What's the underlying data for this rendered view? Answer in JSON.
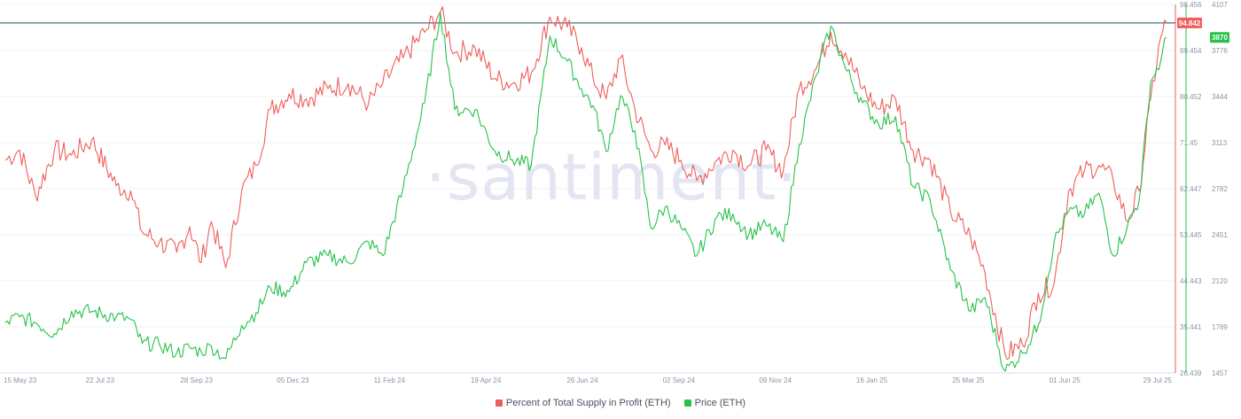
{
  "chart_data": {
    "type": "line",
    "watermark": "·santiment·",
    "x_tick_labels": [
      "15 May 23",
      "22 Jul 23",
      "28 Sep 23",
      "05 Dec 23",
      "11 Feb 24",
      "19 Apr 24",
      "26 Jun 24",
      "02 Sep 24",
      "09 Nov 24",
      "16 Jan 25",
      "25 Mar 25",
      "01 Jun 25",
      "29 Jul 25"
    ],
    "left_axis": {
      "series": "Percent of Total Supply in Profit (ETH)",
      "ylim": [
        26.439,
        98.456
      ],
      "ticks": [
        "98.456",
        "89.454",
        "80.452",
        "71.45",
        "62.447",
        "53.445",
        "44.443",
        "35.441",
        "26.439"
      ]
    },
    "right_axis": {
      "series": "Price (ETH)",
      "ylim": [
        1457,
        4107
      ],
      "ticks": [
        "4107",
        "3776",
        "3444",
        "3113",
        "2782",
        "2451",
        "2120",
        "1789",
        "1457"
      ]
    },
    "reference_line": {
      "value": 94.842,
      "axis": "left"
    },
    "current_values": {
      "percent_label": "94.842",
      "price_label": "3870"
    },
    "series": [
      {
        "name": "Percent of Total Supply in Profit (ETH)",
        "color": "#ee5f5b",
        "axis": "left",
        "points": [
          [
            "2023-05-15",
            68
          ],
          [
            "2023-05-25",
            70
          ],
          [
            "2023-06-05",
            61
          ],
          [
            "2023-06-18",
            70
          ],
          [
            "2023-06-30",
            69
          ],
          [
            "2023-07-14",
            72
          ],
          [
            "2023-07-31",
            63
          ],
          [
            "2023-08-10",
            62
          ],
          [
            "2023-08-18",
            54
          ],
          [
            "2023-08-30",
            52
          ],
          [
            "2023-09-11",
            50
          ],
          [
            "2023-09-20",
            55
          ],
          [
            "2023-09-28",
            48
          ],
          [
            "2023-10-05",
            56
          ],
          [
            "2023-10-15",
            47
          ],
          [
            "2023-10-26",
            62
          ],
          [
            "2023-11-05",
            67
          ],
          [
            "2023-11-15",
            78
          ],
          [
            "2023-11-28",
            81
          ],
          [
            "2023-12-10",
            80
          ],
          [
            "2023-12-25",
            82
          ],
          [
            "2024-01-08",
            83
          ],
          [
            "2024-01-22",
            79
          ],
          [
            "2024-02-01",
            83
          ],
          [
            "2024-02-15",
            88
          ],
          [
            "2024-03-01",
            93
          ],
          [
            "2024-03-12",
            97
          ],
          [
            "2024-03-22",
            89
          ],
          [
            "2024-04-05",
            90
          ],
          [
            "2024-04-19",
            84
          ],
          [
            "2024-05-01",
            83
          ],
          [
            "2024-05-14",
            85
          ],
          [
            "2024-05-27",
            96
          ],
          [
            "2024-06-08",
            94
          ],
          [
            "2024-06-18",
            90
          ],
          [
            "2024-06-26",
            84
          ],
          [
            "2024-07-05",
            80
          ],
          [
            "2024-07-15",
            88
          ],
          [
            "2024-07-25",
            78
          ],
          [
            "2024-08-05",
            70
          ],
          [
            "2024-08-15",
            71
          ],
          [
            "2024-08-26",
            68
          ],
          [
            "2024-09-06",
            64
          ],
          [
            "2024-09-20",
            68
          ],
          [
            "2024-10-01",
            70
          ],
          [
            "2024-10-12",
            67
          ],
          [
            "2024-10-24",
            70
          ],
          [
            "2024-11-05",
            66
          ],
          [
            "2024-11-16",
            82
          ],
          [
            "2024-11-28",
            86
          ],
          [
            "2024-12-08",
            93
          ],
          [
            "2024-12-18",
            89
          ],
          [
            "2024-12-30",
            82
          ],
          [
            "2025-01-10",
            78
          ],
          [
            "2025-01-22",
            80
          ],
          [
            "2025-02-03",
            70
          ],
          [
            "2025-02-15",
            68
          ],
          [
            "2025-03-01",
            58
          ],
          [
            "2025-03-15",
            53
          ],
          [
            "2025-03-25",
            46
          ],
          [
            "2025-04-08",
            30
          ],
          [
            "2025-04-20",
            32
          ],
          [
            "2025-05-01",
            42
          ],
          [
            "2025-05-12",
            44
          ],
          [
            "2025-05-22",
            62
          ],
          [
            "2025-06-02",
            66
          ],
          [
            "2025-06-12",
            67
          ],
          [
            "2025-06-22",
            64
          ],
          [
            "2025-07-02",
            56
          ],
          [
            "2025-07-10",
            62
          ],
          [
            "2025-07-18",
            80
          ],
          [
            "2025-07-25",
            92
          ],
          [
            "2025-07-29",
            95
          ]
        ]
      },
      {
        "name": "Price (ETH)",
        "color": "#26c24a",
        "axis": "right",
        "points": [
          [
            "2023-05-15",
            1818
          ],
          [
            "2023-05-25",
            1860
          ],
          [
            "2023-06-05",
            1820
          ],
          [
            "2023-06-18",
            1740
          ],
          [
            "2023-06-30",
            1900
          ],
          [
            "2023-07-14",
            1900
          ],
          [
            "2023-07-31",
            1860
          ],
          [
            "2023-08-10",
            1840
          ],
          [
            "2023-08-18",
            1670
          ],
          [
            "2023-08-30",
            1660
          ],
          [
            "2023-09-11",
            1600
          ],
          [
            "2023-09-20",
            1640
          ],
          [
            "2023-09-28",
            1610
          ],
          [
            "2023-10-05",
            1650
          ],
          [
            "2023-10-15",
            1560
          ],
          [
            "2023-10-26",
            1800
          ],
          [
            "2023-11-05",
            1890
          ],
          [
            "2023-11-15",
            2070
          ],
          [
            "2023-11-28",
            2040
          ],
          [
            "2023-12-10",
            2250
          ],
          [
            "2023-12-25",
            2300
          ],
          [
            "2024-01-08",
            2250
          ],
          [
            "2024-01-22",
            2400
          ],
          [
            "2024-02-01",
            2300
          ],
          [
            "2024-02-15",
            2780
          ],
          [
            "2024-03-01",
            3400
          ],
          [
            "2024-03-12",
            4050
          ],
          [
            "2024-03-22",
            3350
          ],
          [
            "2024-04-05",
            3350
          ],
          [
            "2024-04-19",
            3050
          ],
          [
            "2024-05-01",
            2990
          ],
          [
            "2024-05-14",
            2950
          ],
          [
            "2024-05-27",
            3880
          ],
          [
            "2024-06-08",
            3700
          ],
          [
            "2024-06-18",
            3500
          ],
          [
            "2024-06-26",
            3380
          ],
          [
            "2024-07-05",
            3050
          ],
          [
            "2024-07-15",
            3450
          ],
          [
            "2024-07-25",
            3200
          ],
          [
            "2024-08-05",
            2500
          ],
          [
            "2024-08-15",
            2650
          ],
          [
            "2024-08-26",
            2500
          ],
          [
            "2024-09-06",
            2300
          ],
          [
            "2024-09-20",
            2580
          ],
          [
            "2024-10-01",
            2600
          ],
          [
            "2024-10-12",
            2450
          ],
          [
            "2024-10-24",
            2520
          ],
          [
            "2024-11-05",
            2400
          ],
          [
            "2024-11-16",
            3100
          ],
          [
            "2024-11-28",
            3600
          ],
          [
            "2024-12-08",
            3950
          ],
          [
            "2024-12-18",
            3650
          ],
          [
            "2024-12-30",
            3400
          ],
          [
            "2025-01-10",
            3250
          ],
          [
            "2025-01-22",
            3300
          ],
          [
            "2025-02-03",
            2800
          ],
          [
            "2025-02-15",
            2700
          ],
          [
            "2025-03-01",
            2200
          ],
          [
            "2025-03-15",
            1900
          ],
          [
            "2025-03-25",
            2000
          ],
          [
            "2025-04-08",
            1470
          ],
          [
            "2025-04-20",
            1600
          ],
          [
            "2025-05-01",
            1800
          ],
          [
            "2025-05-12",
            2400
          ],
          [
            "2025-05-22",
            2620
          ],
          [
            "2025-06-02",
            2600
          ],
          [
            "2025-06-12",
            2750
          ],
          [
            "2025-06-22",
            2300
          ],
          [
            "2025-07-02",
            2520
          ],
          [
            "2025-07-10",
            2700
          ],
          [
            "2025-07-18",
            3550
          ],
          [
            "2025-07-25",
            3700
          ],
          [
            "2025-07-29",
            3870
          ]
        ]
      }
    ],
    "legend_placement": "bottom-center",
    "grid": true
  },
  "legend": {
    "items": [
      {
        "label": "Percent of Total Supply in Profit (ETH)",
        "color": "#ee5f5b"
      },
      {
        "label": "Price (ETH)",
        "color": "#26c24a"
      }
    ]
  }
}
